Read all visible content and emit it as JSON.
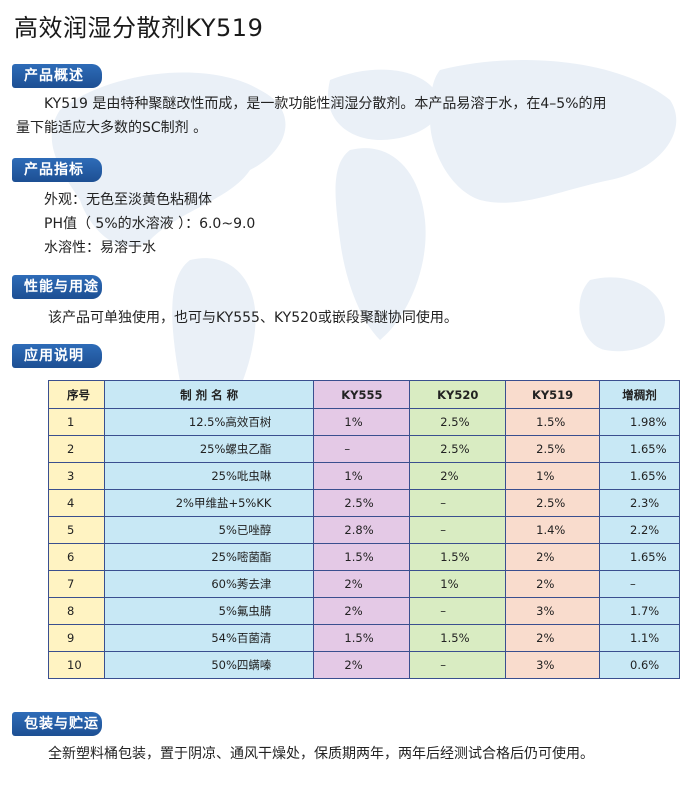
{
  "title": "高效润湿分散剂KY519",
  "sections": {
    "overview": {
      "heading": "产品概述",
      "lines": [
        "KY519 是由特种聚醚改性而成，是一款功能性润湿分散剂。本产品易溶于水，在4–5%的用",
        "量下能适应大多数的SC制剂 。"
      ]
    },
    "specs": {
      "heading": "产品指标",
      "lines": [
        "外观：无色至淡黄色粘稠体",
        "PH值（ 5%的水溶液 ）：6.0~9.0",
        "水溶性：易溶于水"
      ]
    },
    "usage": {
      "heading": "性能与用途",
      "text": "该产品可单独使用，也可与KY555、KY520或嵌段聚醚协同使用。"
    },
    "application": {
      "heading": "应用说明"
    },
    "packaging": {
      "heading": "包装与贮运",
      "text": "全新塑料桶包装，置于阴凉、通风干燥处，保质期两年，两年后经测试合格后仍可使用。"
    }
  },
  "table": {
    "headers": [
      "序号",
      "制 剂 名 称",
      "KY555",
      "KY520",
      "KY519",
      "增稠剂"
    ],
    "rows": [
      [
        "1",
        "12.5%高效百树",
        "1%",
        "2.5%",
        "1.5%",
        "1.98%"
      ],
      [
        "2",
        "25%螺虫乙酯",
        "–",
        "2.5%",
        "2.5%",
        "1.65%"
      ],
      [
        "3",
        "25%吡虫啉",
        "1%",
        "2%",
        "1%",
        "1.65%"
      ],
      [
        "4",
        "2%甲维盐+5%KK",
        "2.5%",
        "–",
        "2.5%",
        "2.3%"
      ],
      [
        "5",
        "5%已唑醇",
        "2.8%",
        "–",
        "1.4%",
        "2.2%"
      ],
      [
        "6",
        "25%嘧菌酯",
        "1.5%",
        "1.5%",
        "2%",
        "1.65%"
      ],
      [
        "7",
        "60%莠去津",
        "2%",
        "1%",
        "2%",
        "–"
      ],
      [
        "8",
        "5%氟虫腈",
        "2%",
        "–",
        "3%",
        "1.7%"
      ],
      [
        "9",
        "54%百菌清",
        "1.5%",
        "1.5%",
        "2%",
        "1.1%"
      ],
      [
        "10",
        "50%四螨嗪",
        "2%",
        "–",
        "3%",
        "0.6%"
      ]
    ]
  },
  "colors": {
    "tab": "#1d4f93",
    "map": "#e8eef6"
  }
}
